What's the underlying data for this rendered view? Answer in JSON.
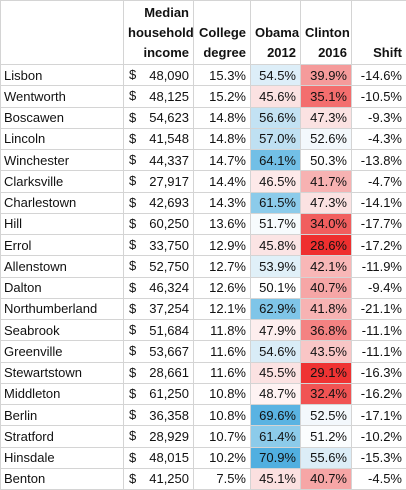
{
  "headers": {
    "town": "",
    "income_line1": "Median",
    "income_line2": "household",
    "income_line3": "income",
    "college_line1": "College",
    "college_line2": "degree",
    "obama_line1": "Obama",
    "obama_line2": "2012",
    "clinton_line1": "Clinton",
    "clinton_line2": "2016",
    "shift": "Shift"
  },
  "currency_symbol": "$",
  "rows": [
    {
      "town": "Lisbon",
      "income": "48,090",
      "college": "15.3%",
      "obama": "54.5%",
      "clinton": "39.9%",
      "shift": "-14.6%",
      "obama_color": "#ddeef8",
      "clinton_color": "#f59b9b"
    },
    {
      "town": "Wentworth",
      "income": "48,125",
      "college": "15.2%",
      "obama": "45.6%",
      "clinton": "35.1%",
      "shift": "-10.5%",
      "obama_color": "#fbe2e2",
      "clinton_color": "#f36e6e"
    },
    {
      "town": "Boscawen",
      "income": "54,623",
      "college": "14.8%",
      "obama": "56.6%",
      "clinton": "47.3%",
      "shift": "-9.3%",
      "obama_color": "#c3e2f3",
      "clinton_color": "#fbe2e2"
    },
    {
      "town": "Lincoln",
      "income": "41,548",
      "college": "14.8%",
      "obama": "57.0%",
      "clinton": "52.6%",
      "shift": "-4.3%",
      "obama_color": "#bfe0f2",
      "clinton_color": "#f3f8fc"
    },
    {
      "town": "Winchester",
      "income": "44,337",
      "college": "14.7%",
      "obama": "64.1%",
      "clinton": "50.3%",
      "shift": "-13.8%",
      "obama_color": "#72bfe6",
      "clinton_color": "#ffffff"
    },
    {
      "town": "Clarksville",
      "income": "27,917",
      "college": "14.4%",
      "obama": "46.5%",
      "clinton": "41.7%",
      "shift": "-4.7%",
      "obama_color": "#fde9e9",
      "clinton_color": "#f7b2b2"
    },
    {
      "town": "Charlestown",
      "income": "42,693",
      "college": "14.3%",
      "obama": "61.5%",
      "clinton": "47.3%",
      "shift": "-14.1%",
      "obama_color": "#8ccbea",
      "clinton_color": "#fbe2e2"
    },
    {
      "town": "Hill",
      "income": "60,250",
      "college": "13.6%",
      "obama": "51.7%",
      "clinton": "34.0%",
      "shift": "-17.7%",
      "obama_color": "#f7fbfd",
      "clinton_color": "#f15e5e"
    },
    {
      "town": "Errol",
      "income": "33,750",
      "college": "12.9%",
      "obama": "45.8%",
      "clinton": "28.6%",
      "shift": "-17.2%",
      "obama_color": "#fbe4e4",
      "clinton_color": "#ef2f2f"
    },
    {
      "town": "Allenstown",
      "income": "52,750",
      "college": "12.7%",
      "obama": "53.9%",
      "clinton": "42.1%",
      "shift": "-11.9%",
      "obama_color": "#e0f0f8",
      "clinton_color": "#f8b7b7"
    },
    {
      "town": "Dalton",
      "income": "46,324",
      "college": "12.6%",
      "obama": "50.1%",
      "clinton": "40.7%",
      "shift": "-9.4%",
      "obama_color": "#ffffff",
      "clinton_color": "#f6a6a6"
    },
    {
      "town": "Northumberland",
      "income": "37,254",
      "college": "12.1%",
      "obama": "62.9%",
      "clinton": "41.8%",
      "shift": "-21.1%",
      "obama_color": "#7fc5e8",
      "clinton_color": "#f7b3b3"
    },
    {
      "town": "Seabrook",
      "income": "51,684",
      "college": "11.8%",
      "obama": "47.9%",
      "clinton": "36.8%",
      "shift": "-11.1%",
      "obama_color": "#fdeeee",
      "clinton_color": "#f48282"
    },
    {
      "town": "Greenville",
      "income": "53,667",
      "college": "11.6%",
      "obama": "54.6%",
      "clinton": "43.5%",
      "shift": "-11.1%",
      "obama_color": "#d9ecf7",
      "clinton_color": "#f9c6c6"
    },
    {
      "town": "Stewartstown",
      "income": "28,661",
      "college": "11.6%",
      "obama": "45.5%",
      "clinton": "29.1%",
      "shift": "-16.3%",
      "obama_color": "#fbe2e2",
      "clinton_color": "#ef3333"
    },
    {
      "town": "Middleton",
      "income": "61,250",
      "college": "10.8%",
      "obama": "48.7%",
      "clinton": "32.4%",
      "shift": "-16.2%",
      "obama_color": "#fef3f3",
      "clinton_color": "#f15353"
    },
    {
      "town": "Berlin",
      "income": "36,358",
      "college": "10.8%",
      "obama": "69.6%",
      "clinton": "52.5%",
      "shift": "-17.1%",
      "obama_color": "#5ab3e2",
      "clinton_color": "#f3f8fc"
    },
    {
      "town": "Stratford",
      "income": "28,929",
      "college": "10.7%",
      "obama": "61.4%",
      "clinton": "51.2%",
      "shift": "-10.2%",
      "obama_color": "#8ccbea",
      "clinton_color": "#fbfdfe"
    },
    {
      "town": "Hinsdale",
      "income": "48,015",
      "college": "10.2%",
      "obama": "70.9%",
      "clinton": "55.6%",
      "shift": "-15.3%",
      "obama_color": "#51afe0",
      "clinton_color": "#dcedf7"
    },
    {
      "town": "Benton",
      "income": "41,250",
      "college": "7.5%",
      "obama": "45.1%",
      "clinton": "40.7%",
      "shift": "-4.5%",
      "obama_color": "#fbe0e0",
      "clinton_color": "#f6a6a6"
    }
  ]
}
